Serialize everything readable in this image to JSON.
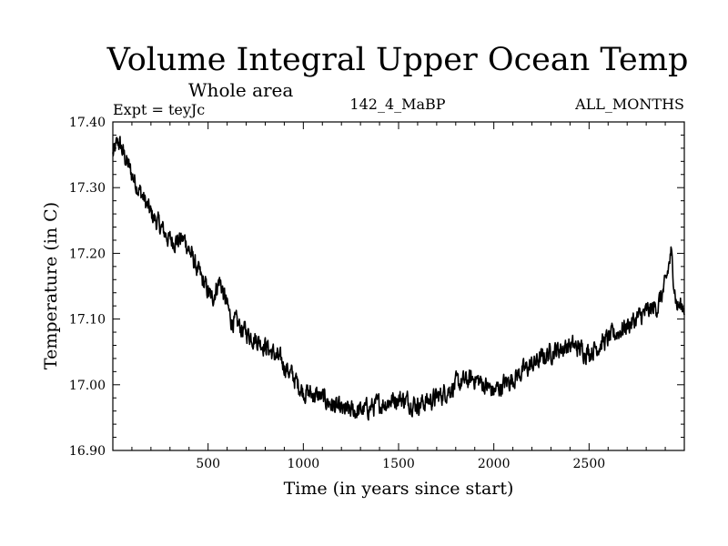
{
  "chart_data": {
    "type": "line",
    "title": "Volume Integral Upper Ocean Temp",
    "subtitle": "Whole area",
    "left_label": "Expt = teyJc",
    "center_label": "142_4_MaBP",
    "right_label": "ALL_MONTHS",
    "xlabel": "Time (in years since start)",
    "ylabel": "Temperature (in C)",
    "xlim": [
      0,
      3000
    ],
    "ylim": [
      16.9,
      17.4
    ],
    "x_ticks": [
      500,
      1000,
      1500,
      2000,
      2500
    ],
    "x_tick_labels": [
      "500",
      "1000",
      "1500",
      "2000",
      "2500"
    ],
    "y_ticks": [
      16.9,
      17.0,
      17.1,
      17.2,
      17.3,
      17.4
    ],
    "y_tick_labels": [
      "16.90",
      "17.00",
      "17.10",
      "17.20",
      "17.30",
      "17.40"
    ],
    "grid": false,
    "series": [
      {
        "name": "Volume Integral Upper Ocean Temp",
        "color": "#000000",
        "trend_x": [
          0,
          30,
          100,
          200,
          300,
          380,
          450,
          520,
          560,
          620,
          700,
          800,
          900,
          1000,
          1100,
          1200,
          1300,
          1400,
          1500,
          1600,
          1700,
          1800,
          1900,
          2000,
          2100,
          2200,
          2300,
          2400,
          2500,
          2600,
          2700,
          2800,
          2860,
          2900,
          2930,
          2960,
          3000
        ],
        "trend_y": [
          17.35,
          17.37,
          17.32,
          17.26,
          17.22,
          17.22,
          17.17,
          17.13,
          17.16,
          17.1,
          17.08,
          17.06,
          17.03,
          16.99,
          16.98,
          16.96,
          16.96,
          16.97,
          16.98,
          16.97,
          16.98,
          17.0,
          17.01,
          16.99,
          17.01,
          17.03,
          17.05,
          17.06,
          17.05,
          17.07,
          17.09,
          17.11,
          17.12,
          17.15,
          17.2,
          17.12,
          17.12
        ],
        "noise_amplitude": 0.012,
        "sample_step_years": 2
      }
    ]
  }
}
